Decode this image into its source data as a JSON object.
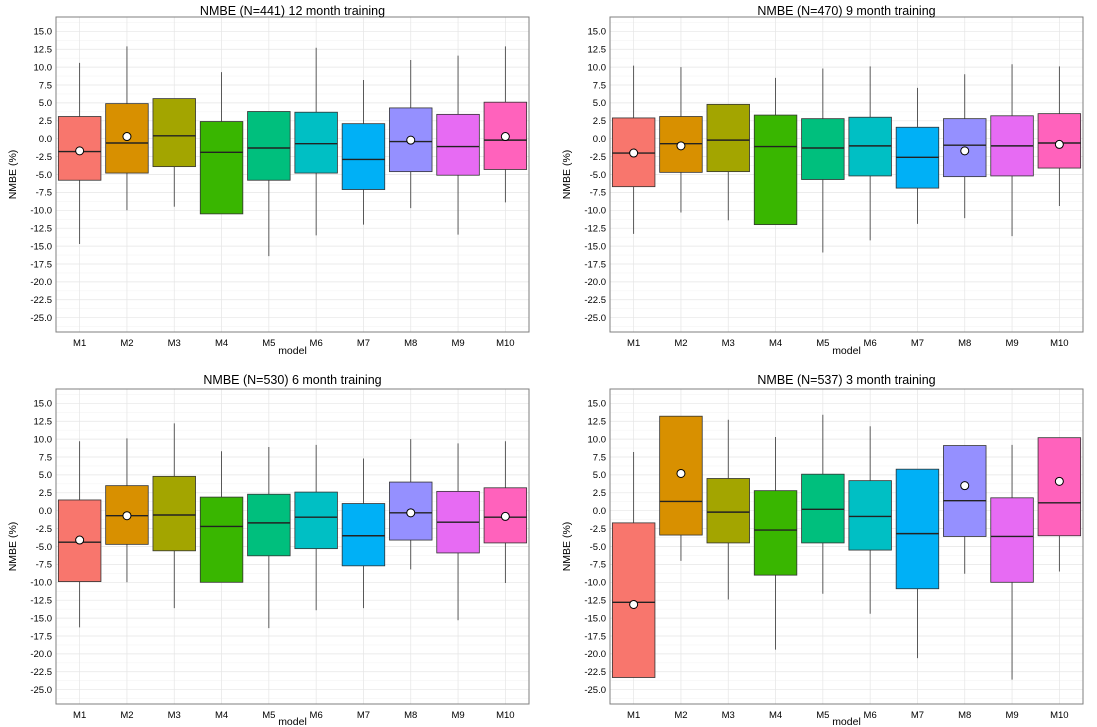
{
  "chart_data": [
    {
      "type": "box",
      "title": "NMBE (N=441) 12 month training",
      "xlabel": "model",
      "ylabel": "NMBE (%)",
      "ylim": [
        -27,
        17
      ],
      "yticks": [
        "15.0",
        "12.5",
        "10.0",
        "7.5",
        "5.0",
        "2.5",
        "0.0",
        "-2.5",
        "-5.0",
        "-7.5",
        "-10.0",
        "-12.5",
        "-15.0",
        "-17.5",
        "-20.0",
        "-22.5",
        "-25.0"
      ],
      "categories": [
        "M1",
        "M2",
        "M3",
        "M4",
        "M5",
        "M6",
        "M7",
        "M8",
        "M9",
        "M10"
      ],
      "boxes": [
        {
          "whisker_low": -14.7,
          "q1": -5.8,
          "median": -1.8,
          "q3": 3.1,
          "whisker_high": 10.6,
          "mean": -1.7
        },
        {
          "whisker_low": -10.0,
          "q1": -4.8,
          "median": -0.6,
          "q3": 4.9,
          "whisker_high": 12.9,
          "mean": 0.3
        },
        {
          "whisker_low": -9.5,
          "q1": -3.9,
          "median": 0.4,
          "q3": 5.6,
          "whisker_high": null,
          "mean": null
        },
        {
          "whisker_low": null,
          "q1": -10.5,
          "median": -1.9,
          "q3": 2.4,
          "whisker_high": 9.3,
          "mean": null
        },
        {
          "whisker_low": -16.4,
          "q1": -5.8,
          "median": -1.3,
          "q3": 3.8,
          "whisker_high": null,
          "mean": null
        },
        {
          "whisker_low": -13.5,
          "q1": -4.8,
          "median": -0.7,
          "q3": 3.7,
          "whisker_high": 12.7,
          "mean": null
        },
        {
          "whisker_low": -12.0,
          "q1": -7.1,
          "median": -2.9,
          "q3": 2.1,
          "whisker_high": 8.2,
          "mean": null
        },
        {
          "whisker_low": -9.7,
          "q1": -4.6,
          "median": -0.4,
          "q3": 4.3,
          "whisker_high": 11.0,
          "mean": -0.2
        },
        {
          "whisker_low": -13.4,
          "q1": -5.1,
          "median": -1.1,
          "q3": 3.4,
          "whisker_high": 11.6,
          "mean": null
        },
        {
          "whisker_low": -8.9,
          "q1": -4.3,
          "median": -0.2,
          "q3": 5.1,
          "whisker_high": 12.9,
          "mean": 0.3
        }
      ]
    },
    {
      "type": "box",
      "title": "NMBE (N=470) 9 month training",
      "xlabel": "model",
      "ylabel": "NMBE (%)",
      "ylim": [
        -27,
        17
      ],
      "yticks": [
        "15.0",
        "12.5",
        "10.0",
        "7.5",
        "5.0",
        "2.5",
        "0.0",
        "-2.5",
        "-5.0",
        "-7.5",
        "-10.0",
        "-12.5",
        "-15.0",
        "-17.5",
        "-20.0",
        "-22.5",
        "-25.0"
      ],
      "categories": [
        "M1",
        "M2",
        "M3",
        "M4",
        "M5",
        "M6",
        "M7",
        "M8",
        "M9",
        "M10"
      ],
      "boxes": [
        {
          "whisker_low": -13.3,
          "q1": -6.7,
          "median": -2.0,
          "q3": 2.9,
          "whisker_high": 10.2,
          "mean": -2.0
        },
        {
          "whisker_low": -10.3,
          "q1": -4.7,
          "median": -0.7,
          "q3": 3.1,
          "whisker_high": 10.0,
          "mean": -1.0
        },
        {
          "whisker_low": -11.4,
          "q1": -4.6,
          "median": -0.2,
          "q3": 4.8,
          "whisker_high": null,
          "mean": null
        },
        {
          "whisker_low": null,
          "q1": -12.0,
          "median": -1.1,
          "q3": 3.3,
          "whisker_high": 8.5,
          "mean": null
        },
        {
          "whisker_low": -15.9,
          "q1": -5.7,
          "median": -1.3,
          "q3": 2.8,
          "whisker_high": 9.8,
          "mean": null
        },
        {
          "whisker_low": -14.2,
          "q1": -5.2,
          "median": -1.0,
          "q3": 3.0,
          "whisker_high": 10.1,
          "mean": null
        },
        {
          "whisker_low": -11.9,
          "q1": -6.9,
          "median": -2.6,
          "q3": 1.6,
          "whisker_high": 7.1,
          "mean": null
        },
        {
          "whisker_low": -11.1,
          "q1": -5.3,
          "median": -0.9,
          "q3": 2.8,
          "whisker_high": 9.0,
          "mean": -1.7
        },
        {
          "whisker_low": -13.6,
          "q1": -5.2,
          "median": -1.0,
          "q3": 3.2,
          "whisker_high": 10.4,
          "mean": null
        },
        {
          "whisker_low": -9.4,
          "q1": -4.1,
          "median": -0.6,
          "q3": 3.5,
          "whisker_high": 10.1,
          "mean": -0.8
        }
      ]
    },
    {
      "type": "box",
      "title": "NMBE (N=530) 6 month training",
      "xlabel": "model",
      "ylabel": "NMBE (%)",
      "ylim": [
        -27,
        17
      ],
      "yticks": [
        "15.0",
        "12.5",
        "10.0",
        "7.5",
        "5.0",
        "2.5",
        "0.0",
        "-2.5",
        "-5.0",
        "-7.5",
        "-10.0",
        "-12.5",
        "-15.0",
        "-17.5",
        "-20.0",
        "-22.5",
        "-25.0"
      ],
      "categories": [
        "M1",
        "M2",
        "M3",
        "M4",
        "M5",
        "M6",
        "M7",
        "M8",
        "M9",
        "M10"
      ],
      "boxes": [
        {
          "whisker_low": -16.3,
          "q1": -9.9,
          "median": -4.4,
          "q3": 1.5,
          "whisker_high": 9.7,
          "mean": -4.1
        },
        {
          "whisker_low": -10.0,
          "q1": -4.7,
          "median": -0.7,
          "q3": 3.5,
          "whisker_high": 10.1,
          "mean": -0.7
        },
        {
          "whisker_low": -13.6,
          "q1": -5.6,
          "median": -0.6,
          "q3": 4.8,
          "whisker_high": 12.2,
          "mean": null
        },
        {
          "whisker_low": null,
          "q1": -10.0,
          "median": -2.2,
          "q3": 1.9,
          "whisker_high": 8.3,
          "mean": null
        },
        {
          "whisker_low": -16.4,
          "q1": -6.3,
          "median": -1.7,
          "q3": 2.3,
          "whisker_high": 8.9,
          "mean": null
        },
        {
          "whisker_low": -13.9,
          "q1": -5.3,
          "median": -0.9,
          "q3": 2.6,
          "whisker_high": 9.2,
          "mean": null
        },
        {
          "whisker_low": -13.6,
          "q1": -7.7,
          "median": -3.5,
          "q3": 1.0,
          "whisker_high": 7.3,
          "mean": null
        },
        {
          "whisker_low": -8.2,
          "q1": -4.1,
          "median": -0.3,
          "q3": 4.0,
          "whisker_high": 10.0,
          "mean": -0.3
        },
        {
          "whisker_low": -15.3,
          "q1": -5.9,
          "median": -1.6,
          "q3": 2.7,
          "whisker_high": 9.4,
          "mean": null
        },
        {
          "whisker_low": -10.1,
          "q1": -4.5,
          "median": -0.9,
          "q3": 3.2,
          "whisker_high": 9.7,
          "mean": -0.8
        }
      ]
    },
    {
      "type": "box",
      "title": "NMBE (N=537) 3 month training",
      "xlabel": "model",
      "ylabel": "NMBE (%)",
      "ylim": [
        -27,
        17
      ],
      "yticks": [
        "15.0",
        "12.5",
        "10.0",
        "7.5",
        "5.0",
        "2.5",
        "0.0",
        "-2.5",
        "-5.0",
        "-7.5",
        "-10.0",
        "-12.5",
        "-15.0",
        "-17.5",
        "-20.0",
        "-22.5",
        "-25.0"
      ],
      "categories": [
        "M1",
        "M2",
        "M3",
        "M4",
        "M5",
        "M6",
        "M7",
        "M8",
        "M9",
        "M10"
      ],
      "boxes": [
        {
          "whisker_low": null,
          "q1": -23.3,
          "median": -12.8,
          "q3": -1.7,
          "whisker_high": 8.2,
          "mean": -13.1
        },
        {
          "whisker_low": -7.0,
          "q1": -3.4,
          "median": 1.3,
          "q3": 13.2,
          "whisker_high": null,
          "mean": 5.2
        },
        {
          "whisker_low": -12.4,
          "q1": -4.5,
          "median": -0.2,
          "q3": 4.5,
          "whisker_high": 12.7,
          "mean": null
        },
        {
          "whisker_low": -19.4,
          "q1": -9.0,
          "median": -2.7,
          "q3": 2.8,
          "whisker_high": 10.3,
          "mean": null
        },
        {
          "whisker_low": -11.6,
          "q1": -4.5,
          "median": 0.2,
          "q3": 5.1,
          "whisker_high": 13.4,
          "mean": null
        },
        {
          "whisker_low": -14.4,
          "q1": -5.5,
          "median": -0.8,
          "q3": 4.2,
          "whisker_high": 11.8,
          "mean": null
        },
        {
          "whisker_low": -20.6,
          "q1": -10.9,
          "median": -3.2,
          "q3": 5.8,
          "whisker_high": null,
          "mean": null
        },
        {
          "whisker_low": -8.8,
          "q1": -3.6,
          "median": 1.4,
          "q3": 9.1,
          "whisker_high": null,
          "mean": 3.5
        },
        {
          "whisker_low": -23.6,
          "q1": -10.0,
          "median": -3.6,
          "q3": 1.8,
          "whisker_high": 9.2,
          "mean": null
        },
        {
          "whisker_low": -8.5,
          "q1": -3.5,
          "median": 1.1,
          "q3": 10.2,
          "whisker_high": null,
          "mean": 4.1
        }
      ]
    }
  ],
  "colors": {
    "box_fills": [
      "#F8766D",
      "#D89000",
      "#A3A500",
      "#39B600",
      "#00BF7D",
      "#00BFC4",
      "#00B0F6",
      "#9590FF",
      "#E76BF3",
      "#FF62BC"
    ],
    "grid_major": "#e5e5e5",
    "grid_minor": "#f2f2f2",
    "panel_border": "#7f7f7f",
    "mean_marker_fill": "#ffffff"
  }
}
